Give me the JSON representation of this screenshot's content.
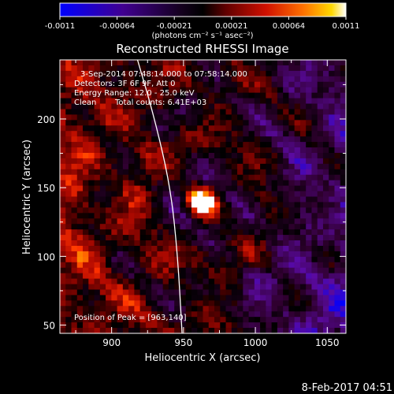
{
  "colorbar": {
    "ticks": [
      "-0.0011",
      "-0.00064",
      "-0.00021",
      "0.00021",
      "0.00064",
      "0.0011"
    ],
    "units_label": "(photons cm⁻² s⁻¹ asec⁻²)"
  },
  "header": {
    "title": "Reconstructed RHESSI Image"
  },
  "info": {
    "time_range": "3-Sep-2014 07:48:14.000 to 07:58:14.000",
    "detectors": "Detectors: 3F 6F 9F, Att 0",
    "energy": "Energy Range: 12.0 - 25.0 keV",
    "algorithm": "Clean",
    "counts": "Total counts: 6.41E+03"
  },
  "peak_label": "Position of Peak = [963,140]",
  "footer": {
    "date": "8-Feb-2017 04:51"
  },
  "chart_data": {
    "type": "heatmap",
    "title": "Reconstructed RHESSI Image",
    "xlabel": "Heliocentric X (arcsec)",
    "ylabel": "Heliocentric Y (arcsec)",
    "xlim": [
      864,
      1063
    ],
    "ylim": [
      44,
      243
    ],
    "xticks": [
      900,
      950,
      1000,
      1050
    ],
    "yticks": [
      50,
      100,
      150,
      200
    ],
    "value_range": [
      -0.0011,
      0.0011
    ],
    "peak_position": [
      963,
      140
    ],
    "colormap": [
      "#0000ff",
      "#5a0aa0",
      "#300030",
      "#000000",
      "#500000",
      "#b00000",
      "#ff3000",
      "#ff8000",
      "#ffd000",
      "#ffffff"
    ],
    "limb_curve": {
      "description": "solar limb",
      "points": [
        [
          918,
          243
        ],
        [
          930,
          200
        ],
        [
          941,
          150
        ],
        [
          946,
          100
        ],
        [
          949,
          44
        ]
      ]
    }
  }
}
